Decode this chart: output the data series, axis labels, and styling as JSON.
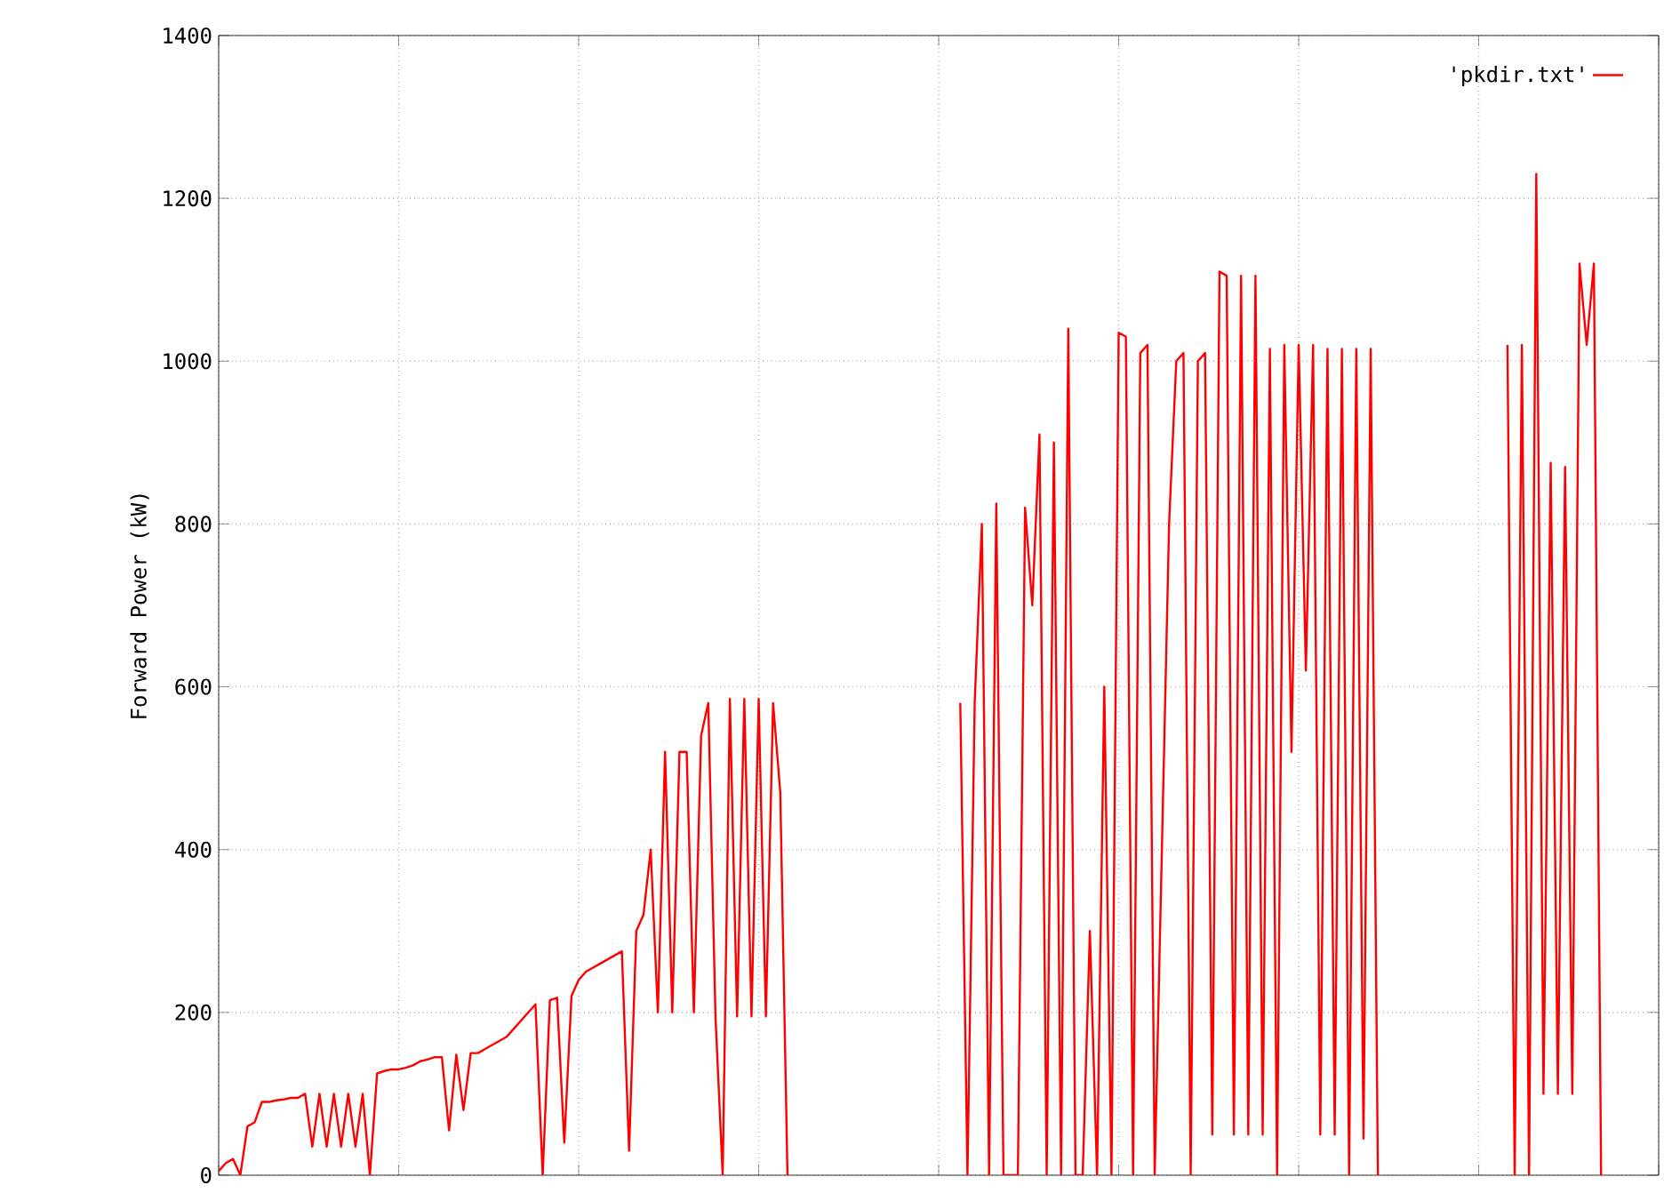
{
  "chart_data": {
    "type": "line",
    "ylabel": "Forward Power (kW)",
    "ylim": [
      0,
      1400
    ],
    "yticks": [
      0,
      200,
      400,
      600,
      800,
      1000,
      1200,
      1400
    ],
    "grid": true,
    "legend": "top right",
    "tick_labels": "y",
    "line_style": "solid",
    "marker": "none",
    "categories": [
      null,
      null,
      null,
      null,
      null,
      null,
      null,
      null,
      null,
      null,
      null,
      null,
      null,
      null,
      null,
      null,
      null,
      null,
      null,
      null,
      null,
      null,
      null,
      null,
      null,
      null,
      null,
      null,
      null,
      null,
      null,
      null,
      null,
      null,
      null,
      null,
      null,
      null,
      null,
      null,
      null,
      null,
      null,
      null,
      null,
      null,
      null,
      null,
      null,
      null,
      null,
      null,
      null,
      null,
      null,
      null,
      null,
      null,
      null,
      null,
      null,
      null,
      null,
      null,
      null,
      null,
      null,
      null,
      null,
      null,
      null,
      null,
      null,
      null,
      null,
      null,
      null,
      null,
      null,
      null,
      null,
      null,
      null,
      null,
      null,
      null,
      null,
      null,
      null,
      null,
      null,
      null,
      null,
      null,
      null,
      null,
      null,
      null,
      null,
      null,
      null,
      null,
      null,
      null,
      null,
      null,
      null,
      null,
      null,
      null,
      null,
      null,
      null,
      null,
      null,
      null,
      null,
      null,
      null,
      null,
      null,
      null,
      null,
      null,
      null,
      null,
      null,
      null,
      null,
      null,
      null,
      null,
      null,
      null,
      null,
      null,
      null,
      null,
      null,
      null,
      null,
      null,
      null,
      null,
      null,
      null,
      null,
      null,
      null,
      null,
      null,
      null,
      null,
      null,
      null,
      null,
      null,
      null,
      null,
      null,
      null,
      null,
      null,
      null,
      null,
      null,
      null,
      null,
      null,
      null,
      null,
      null,
      null,
      null,
      null,
      null,
      null,
      null,
      null,
      null,
      null,
      null,
      null,
      null,
      null,
      null,
      null,
      null,
      null,
      null,
      null,
      null,
      null,
      null,
      null,
      null,
      null,
      null,
      null,
      null,
      null
    ],
    "series": [
      {
        "name": "'pkdir.txt'",
        "color": "#ff0000",
        "values": [
          5,
          15,
          20,
          0,
          60,
          65,
          90,
          90,
          92,
          93,
          95,
          95,
          100,
          35,
          100,
          35,
          100,
          35,
          100,
          35,
          100,
          0,
          125,
          128,
          130,
          130,
          132,
          135,
          140,
          142,
          145,
          145,
          55,
          148,
          80,
          150,
          150,
          155,
          160,
          165,
          170,
          180,
          190,
          200,
          210,
          0,
          215,
          218,
          40,
          220,
          240,
          250,
          255,
          260,
          265,
          270,
          275,
          30,
          300,
          320,
          400,
          200,
          520,
          200,
          520,
          520,
          200,
          540,
          580,
          195,
          0,
          585,
          195,
          585,
          195,
          585,
          195,
          580,
          470,
          0,
          null,
          null,
          null,
          null,
          null,
          null,
          null,
          null,
          null,
          null,
          null,
          null,
          null,
          null,
          null,
          null,
          null,
          null,
          null,
          null,
          null,
          null,
          null,
          580,
          0,
          580,
          800,
          0,
          825,
          0,
          0,
          0,
          820,
          700,
          910,
          0,
          900,
          0,
          1040,
          0,
          0,
          300,
          0,
          600,
          0,
          1035,
          1030,
          0,
          1010,
          1020,
          0,
          400,
          800,
          1000,
          1010,
          0,
          1000,
          1010,
          50,
          1110,
          1105,
          50,
          1105,
          50,
          1105,
          50,
          1015,
          0,
          1020,
          520,
          1020,
          620,
          1020,
          50,
          1015,
          50,
          1015,
          0,
          1015,
          45,
          1015,
          0,
          null,
          null,
          null,
          null,
          null,
          null,
          null,
          null,
          null,
          null,
          null,
          null,
          null,
          null,
          null,
          null,
          null,
          1020,
          0,
          1020,
          0,
          1230,
          100,
          875,
          100,
          870,
          100,
          1120,
          1020,
          1120,
          0,
          null,
          null,
          null,
          null,
          null,
          null,
          null,
          null
        ]
      }
    ]
  }
}
